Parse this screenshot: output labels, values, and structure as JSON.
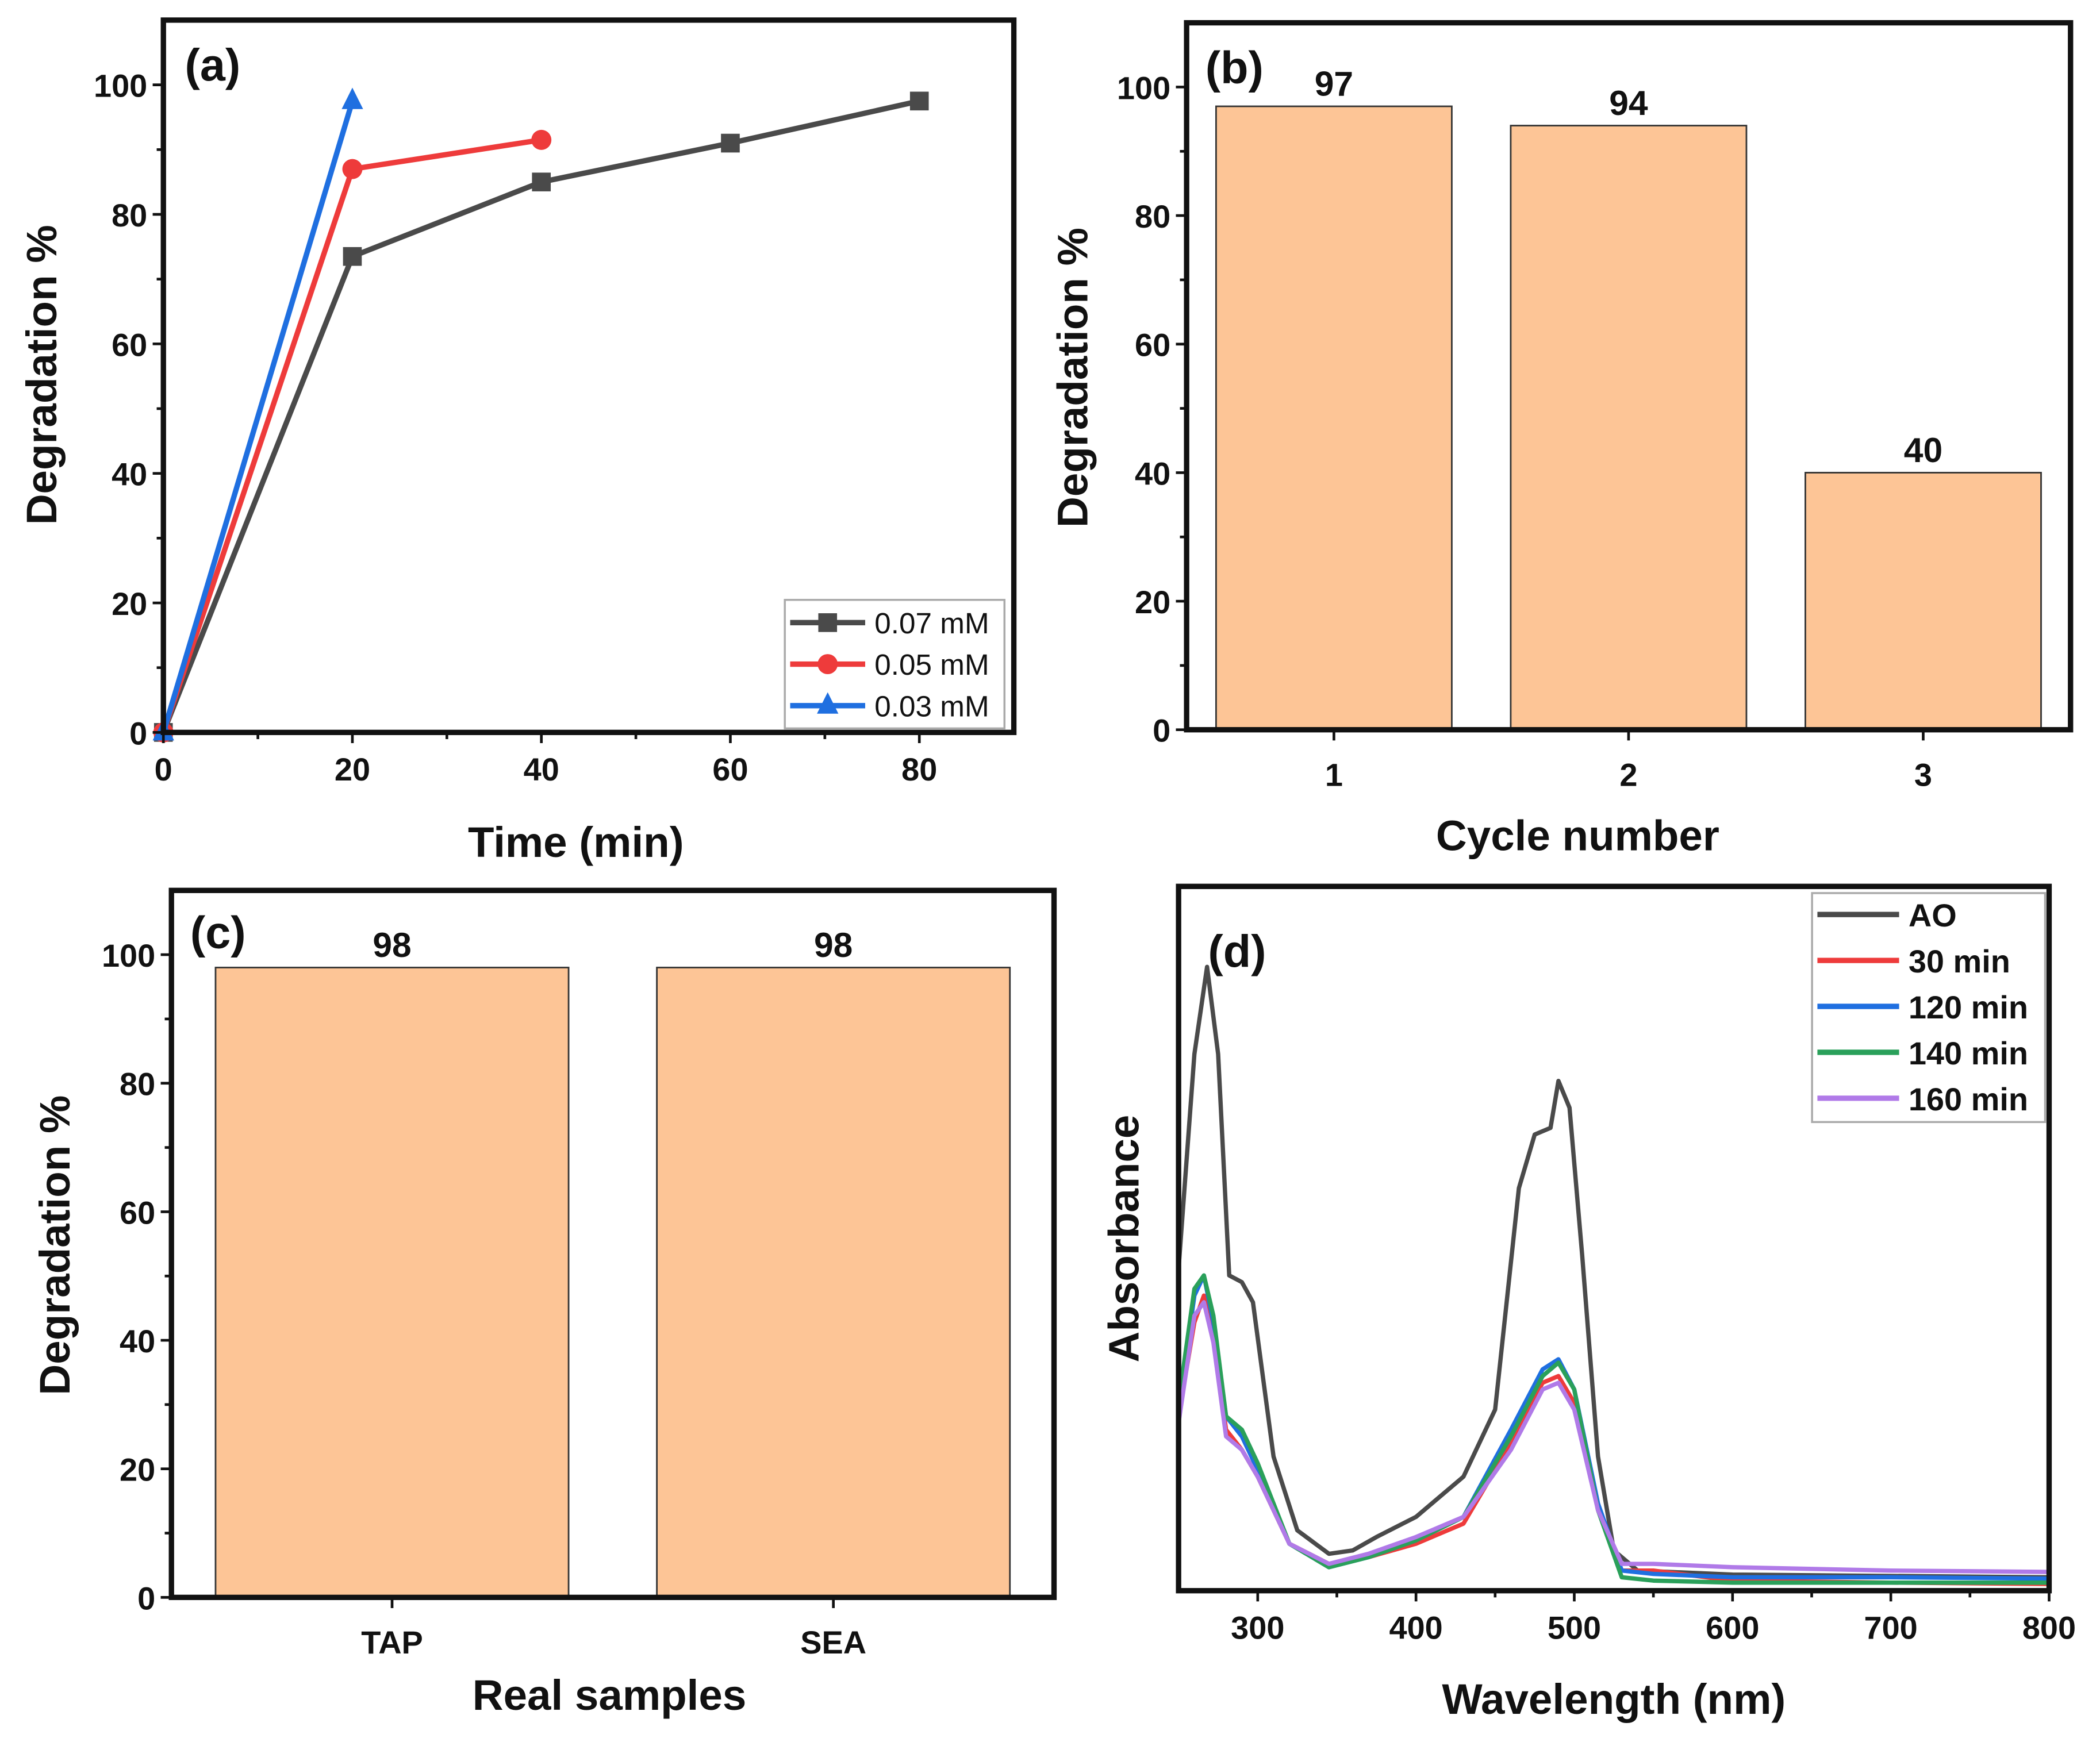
{
  "chart_data": [
    {
      "panel": "(a)",
      "type": "line",
      "xlabel": "Time (min)",
      "ylabel": "Degradation %",
      "xlim": [
        0,
        90
      ],
      "ylim": [
        0,
        110
      ],
      "xticks": [
        0,
        20,
        40,
        60,
        80
      ],
      "yticks": [
        0,
        20,
        40,
        60,
        80,
        100
      ],
      "legend_position": "bottom-right",
      "series": [
        {
          "name": "0.07 mM",
          "color": "#4a4a4a",
          "marker": "square",
          "x": [
            0,
            20,
            40,
            60,
            80
          ],
          "y": [
            0,
            73.5,
            85,
            91,
            97.5
          ]
        },
        {
          "name": "0.05 mM",
          "color": "#ee3b3b",
          "marker": "circle",
          "x": [
            0,
            20,
            40
          ],
          "y": [
            0,
            87,
            91.5
          ]
        },
        {
          "name": "0.03 mM",
          "color": "#1f6fe0",
          "marker": "triangle",
          "x": [
            0,
            20
          ],
          "y": [
            0,
            97.5
          ]
        }
      ]
    },
    {
      "panel": "(b)",
      "type": "bar",
      "xlabel": "Cycle number",
      "ylabel": "Degradation %",
      "categories": [
        "1",
        "2",
        "3"
      ],
      "values": [
        97,
        94,
        40
      ],
      "data_labels": [
        "97",
        "94",
        "40"
      ],
      "ylim": [
        0,
        110
      ],
      "yticks": [
        0,
        20,
        40,
        60,
        80,
        100
      ],
      "bar_color": "#fdc596"
    },
    {
      "panel": "(c)",
      "type": "bar",
      "xlabel": "Real samples",
      "ylabel": "Degradation %",
      "categories": [
        "TAP",
        "SEA"
      ],
      "values": [
        98,
        98
      ],
      "data_labels": [
        "98",
        "98"
      ],
      "ylim": [
        0,
        110
      ],
      "yticks": [
        0,
        20,
        40,
        60,
        80,
        100
      ],
      "bar_color": "#fdc596"
    },
    {
      "panel": "(d)",
      "type": "line",
      "xlabel": "Wavelength (nm)",
      "ylabel": "Absorbance",
      "xlim": [
        250,
        800
      ],
      "ylim": [
        0,
        1.05
      ],
      "xticks": [
        300,
        400,
        500,
        600,
        700,
        800
      ],
      "legend_position": "top-right",
      "series": [
        {
          "name": "AO",
          "color": "#4a4a4a",
          "x": [
            250,
            260,
            268,
            275,
            282,
            290,
            297,
            310,
            325,
            345,
            360,
            375,
            400,
            430,
            450,
            465,
            475,
            485,
            490,
            497,
            505,
            515,
            525,
            540,
            600,
            700,
            800
          ],
          "y": [
            0.48,
            0.8,
            0.93,
            0.8,
            0.47,
            0.46,
            0.43,
            0.2,
            0.09,
            0.055,
            0.06,
            0.08,
            0.11,
            0.17,
            0.27,
            0.6,
            0.68,
            0.69,
            0.76,
            0.72,
            0.5,
            0.2,
            0.06,
            0.03,
            0.024,
            0.022,
            0.02
          ]
        },
        {
          "name": "30 min",
          "color": "#ee3b3b",
          "x": [
            250,
            260,
            266,
            272,
            280,
            290,
            300,
            320,
            345,
            370,
            400,
            430,
            460,
            480,
            490,
            500,
            515,
            530,
            550,
            600,
            700,
            800
          ],
          "y": [
            0.26,
            0.4,
            0.44,
            0.38,
            0.24,
            0.21,
            0.17,
            0.07,
            0.04,
            0.05,
            0.07,
            0.1,
            0.22,
            0.31,
            0.32,
            0.28,
            0.12,
            0.03,
            0.03,
            0.015,
            0.012,
            0.01
          ]
        },
        {
          "name": "120 min",
          "color": "#1f6fe0",
          "x": [
            250,
            260,
            266,
            272,
            280,
            290,
            300,
            320,
            345,
            370,
            400,
            430,
            460,
            480,
            490,
            500,
            515,
            530,
            550,
            600,
            700,
            800
          ],
          "y": [
            0.27,
            0.44,
            0.47,
            0.4,
            0.26,
            0.23,
            0.18,
            0.07,
            0.035,
            0.05,
            0.075,
            0.11,
            0.24,
            0.33,
            0.345,
            0.3,
            0.13,
            0.03,
            0.025,
            0.02,
            0.02,
            0.018
          ]
        },
        {
          "name": "140 min",
          "color": "#2aa05a",
          "x": [
            250,
            260,
            266,
            272,
            280,
            290,
            300,
            320,
            345,
            370,
            400,
            430,
            460,
            480,
            490,
            500,
            515,
            530,
            550,
            600,
            700,
            800
          ],
          "y": [
            0.28,
            0.45,
            0.47,
            0.41,
            0.26,
            0.24,
            0.19,
            0.07,
            0.035,
            0.05,
            0.075,
            0.11,
            0.23,
            0.32,
            0.34,
            0.3,
            0.12,
            0.02,
            0.015,
            0.012,
            0.012,
            0.012
          ]
        },
        {
          "name": "160 min",
          "color": "#b07ae8",
          "x": [
            250,
            260,
            266,
            272,
            280,
            290,
            300,
            320,
            345,
            370,
            400,
            430,
            460,
            480,
            490,
            500,
            515,
            530,
            550,
            600,
            700,
            800
          ],
          "y": [
            0.25,
            0.41,
            0.43,
            0.37,
            0.23,
            0.21,
            0.17,
            0.07,
            0.04,
            0.055,
            0.08,
            0.11,
            0.21,
            0.3,
            0.31,
            0.27,
            0.12,
            0.04,
            0.04,
            0.035,
            0.03,
            0.028
          ]
        }
      ]
    }
  ]
}
